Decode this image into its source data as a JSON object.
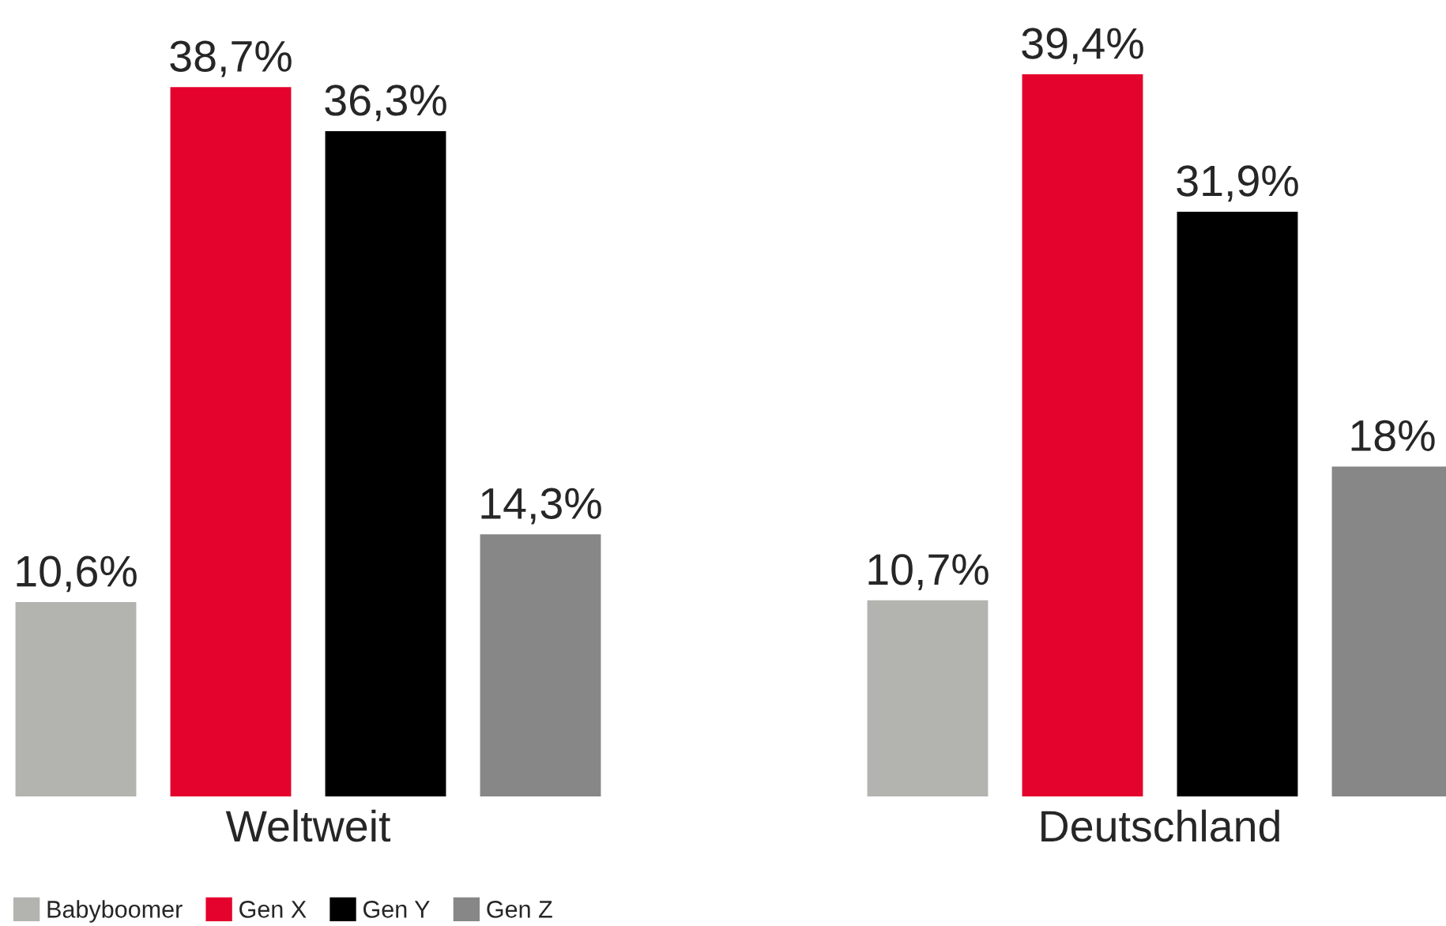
{
  "chart_data": {
    "type": "bar",
    "categories": [
      "Weltweit",
      "Deutschland"
    ],
    "series": [
      {
        "name": "Babyboomer",
        "color": "#b3b3af",
        "values": [
          10.6,
          10.7
        ],
        "value_labels": [
          "10,6%",
          "10,7%"
        ]
      },
      {
        "name": "Gen X",
        "color": "#e4032c",
        "values": [
          38.7,
          39.4
        ],
        "value_labels": [
          "38,7%",
          "39,4%"
        ]
      },
      {
        "name": "Gen Y",
        "color": "#000000",
        "values": [
          36.3,
          31.9
        ],
        "value_labels": [
          "36,3%",
          "31,9%"
        ]
      },
      {
        "name": "Gen Z",
        "color": "#878787",
        "values": [
          14.3,
          18
        ],
        "value_labels": [
          "14,3%",
          "18%"
        ]
      }
    ],
    "legend": "bottom left",
    "grid": false
  }
}
